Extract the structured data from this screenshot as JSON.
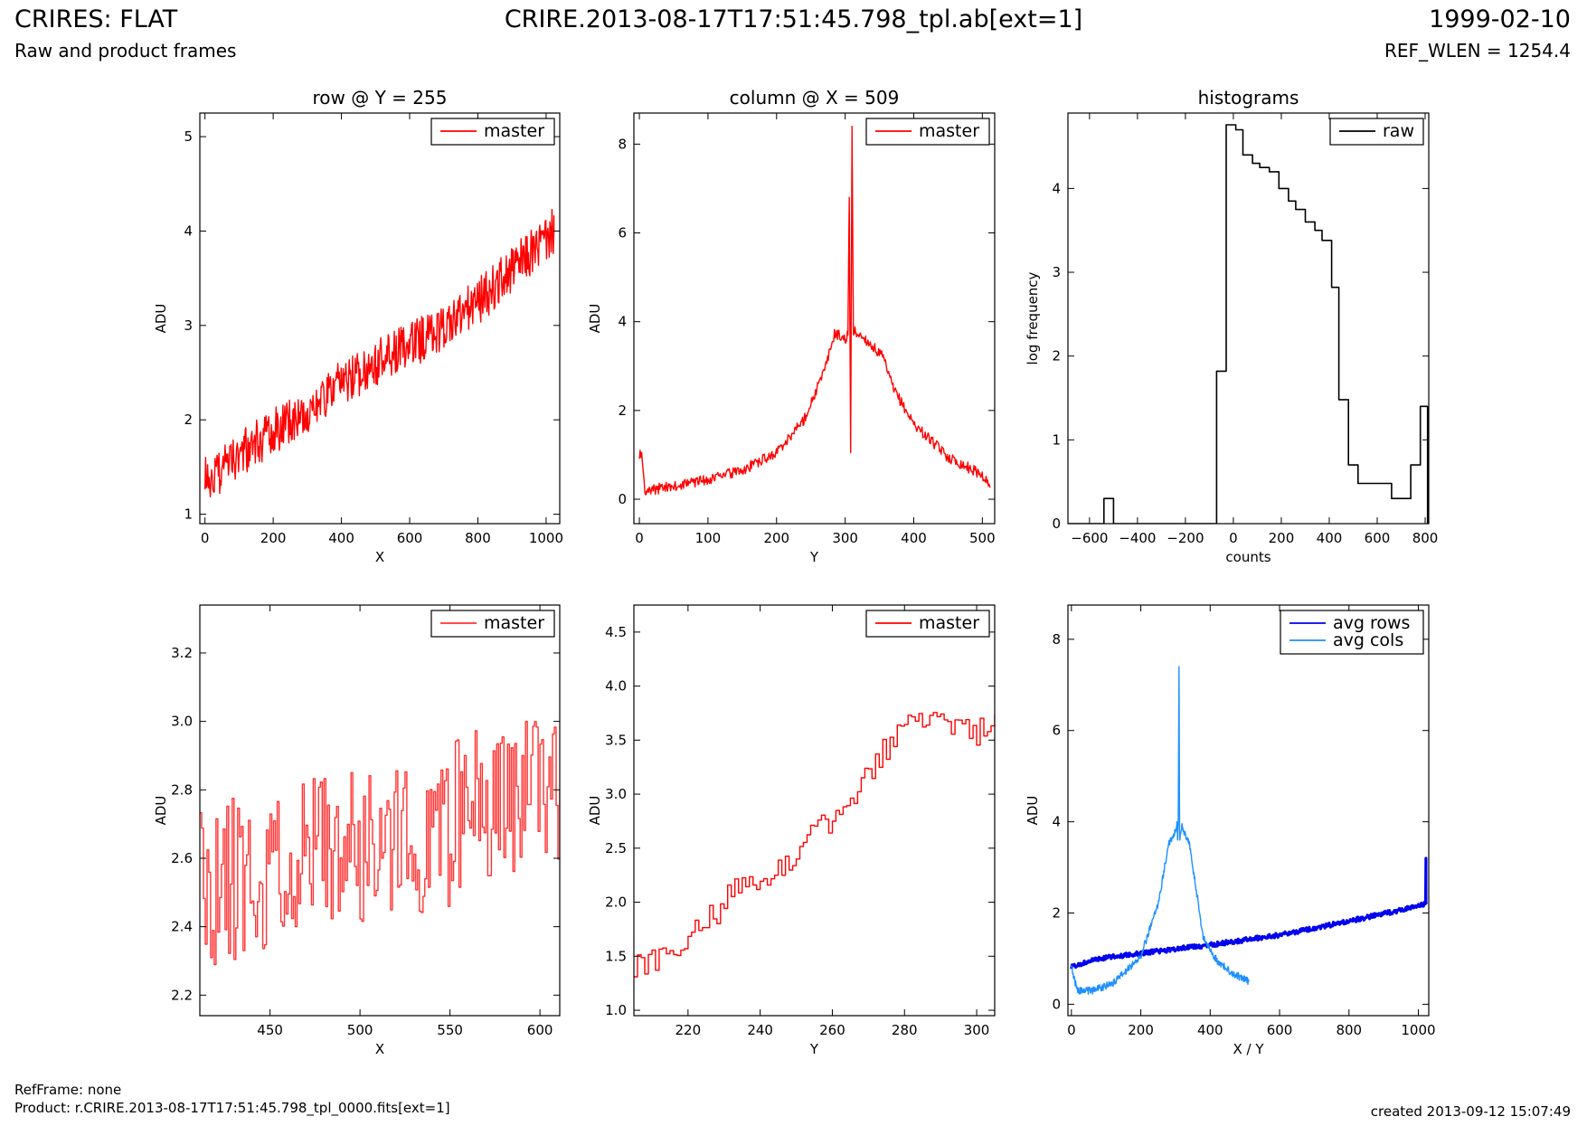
{
  "header": {
    "title": "CRIRES: FLAT",
    "subtitle": "Raw and product frames",
    "file": "CRIRE.2013-08-17T17:51:45.798_tpl.ab[ext=1]",
    "date": "1999-02-10",
    "ref_wlen": "REF_WLEN = 1254.4"
  },
  "footer": {
    "refframe": "RefFrame: none",
    "product": "Product: r.CRIRE.2013-08-17T17:51:45.798_tpl_0000.fits[ext=1]",
    "created": "created 2013-09-12 15:07:49"
  },
  "chart_data": [
    {
      "type": "line",
      "title": "row @ Y = 255",
      "xlabel": "X",
      "ylabel": "ADU",
      "xlim": [
        -15,
        1040
      ],
      "ylim": [
        0.9,
        5.25
      ],
      "xticks": [
        0,
        200,
        400,
        600,
        800,
        1000
      ],
      "yticks": [
        1,
        2,
        3,
        4,
        5
      ],
      "legend_position": "top-right",
      "series": [
        {
          "name": "master",
          "color": "#ff0000",
          "style": "noisy",
          "seed": 3,
          "x": [
            0,
            100,
            200,
            300,
            400,
            500,
            600,
            700,
            800,
            900,
            1000,
            1023
          ],
          "values": [
            1.35,
            1.62,
            1.88,
            2.08,
            2.38,
            2.6,
            2.78,
            2.98,
            3.25,
            3.58,
            3.92,
            4.0
          ],
          "noise": 0.25,
          "count": 520
        }
      ]
    },
    {
      "type": "line",
      "title": "column @ X = 509",
      "xlabel": "Y",
      "ylabel": "ADU",
      "xlim": [
        -8,
        518
      ],
      "ylim": [
        -0.55,
        8.7
      ],
      "xticks": [
        0,
        100,
        200,
        300,
        400,
        500
      ],
      "yticks": [
        0,
        2,
        4,
        6,
        8
      ],
      "legend_position": "top-right",
      "series": [
        {
          "name": "master",
          "color": "#ff0000",
          "style": "noisy",
          "seed": 7,
          "x": [
            0,
            3,
            8,
            10,
            30,
            60,
            100,
            150,
            200,
            240,
            270,
            285,
            300,
            304,
            306,
            308,
            310,
            312,
            316,
            330,
            355,
            370,
            400,
            450,
            500,
            511
          ],
          "values": [
            1.0,
            1.0,
            0.15,
            0.18,
            0.25,
            0.32,
            0.45,
            0.65,
            1.05,
            1.8,
            2.9,
            3.75,
            3.6,
            3.7,
            6.8,
            1.05,
            8.4,
            3.8,
            3.75,
            3.6,
            3.2,
            2.5,
            1.7,
            0.95,
            0.55,
            0.28
          ],
          "noise": 0.12,
          "count": 460
        }
      ]
    },
    {
      "type": "line",
      "title": "histograms",
      "xlabel": "counts",
      "ylabel": "log frequency",
      "xlim": [
        -690,
        815
      ],
      "ylim": [
        0,
        4.9
      ],
      "xticks": [
        -600,
        -400,
        -200,
        0,
        200,
        400,
        600,
        800
      ],
      "yticks": [
        0,
        1,
        2,
        3,
        4
      ],
      "legend_position": "top-right",
      "series": [
        {
          "name": "raw",
          "color": "#000000",
          "style": "step",
          "x": [
            -690,
            -540,
            -540,
            -500,
            -500,
            -70,
            -70,
            -30,
            -30,
            10,
            10,
            40,
            40,
            80,
            80,
            110,
            110,
            150,
            150,
            190,
            190,
            230,
            230,
            260,
            260,
            300,
            300,
            340,
            340,
            370,
            370,
            410,
            410,
            440,
            440,
            480,
            480,
            520,
            520,
            660,
            660,
            740,
            740,
            780,
            780,
            810,
            810
          ],
          "values": [
            0,
            0,
            0.3,
            0.3,
            0,
            0,
            1.82,
            1.82,
            4.76,
            4.76,
            4.7,
            4.7,
            4.4,
            4.4,
            4.3,
            4.3,
            4.25,
            4.25,
            4.2,
            4.2,
            4.0,
            4.0,
            3.85,
            3.85,
            3.75,
            3.75,
            3.6,
            3.6,
            3.5,
            3.5,
            3.38,
            3.38,
            2.82,
            2.82,
            1.48,
            1.48,
            0.7,
            0.7,
            0.48,
            0.48,
            0.3,
            0.3,
            0.7,
            0.7,
            1.4,
            1.4,
            0
          ]
        }
      ]
    },
    {
      "type": "line",
      "title": "",
      "xlabel": "X",
      "ylabel": "ADU",
      "xlim": [
        411,
        611
      ],
      "ylim": [
        2.14,
        3.34
      ],
      "xticks": [
        450,
        500,
        550,
        600
      ],
      "yticks": [
        2.2,
        2.4,
        2.6,
        2.8,
        3.0,
        3.2
      ],
      "legend_position": "top-right",
      "series": [
        {
          "name": "master",
          "color": "#ff3333",
          "style": "noisystep",
          "seed": 11,
          "x": [
            411,
            450,
            500,
            550,
            600,
            611
          ],
          "values": [
            2.52,
            2.56,
            2.64,
            2.7,
            2.84,
            2.76
          ],
          "noise": 0.24,
          "count": 200
        }
      ]
    },
    {
      "type": "line",
      "title": "",
      "xlabel": "Y",
      "ylabel": "ADU",
      "xlim": [
        205,
        305
      ],
      "ylim": [
        0.95,
        4.75
      ],
      "xticks": [
        220,
        240,
        260,
        280,
        300
      ],
      "yticks": [
        1.0,
        1.5,
        2.0,
        2.5,
        3.0,
        3.5,
        4.0,
        4.5
      ],
      "legend_position": "top-right",
      "series": [
        {
          "name": "master",
          "color": "#ff0000",
          "style": "noisystep",
          "seed": 5,
          "x": [
            205,
            215,
            225,
            235,
            245,
            255,
            265,
            275,
            282,
            290,
            300,
            305
          ],
          "values": [
            1.38,
            1.52,
            1.82,
            2.18,
            2.28,
            2.62,
            2.98,
            3.45,
            3.8,
            3.62,
            3.55,
            3.7
          ],
          "noise": 0.13,
          "count": 100
        }
      ]
    },
    {
      "type": "line",
      "title": "",
      "xlabel": "X / Y",
      "ylabel": "ADU",
      "xlim": [
        -10,
        1030
      ],
      "ylim": [
        -0.25,
        8.75
      ],
      "xticks": [
        0,
        200,
        400,
        600,
        800,
        1000
      ],
      "yticks": [
        0,
        2,
        4,
        6,
        8
      ],
      "legend_position": "top-right",
      "series": [
        {
          "name": "avg rows",
          "color": "#0000ee",
          "style": "band",
          "seed": 9,
          "x": [
            0,
            60,
            200,
            400,
            600,
            800,
            1000,
            1022,
            1022,
            1023
          ],
          "values": [
            0.82,
            0.98,
            1.12,
            1.3,
            1.52,
            1.82,
            2.15,
            2.2,
            3.2,
            2.2
          ],
          "noise": 0.05,
          "count": 500
        },
        {
          "name": "avg cols",
          "color": "#1e90ff",
          "style": "noisy",
          "seed": 13,
          "x": [
            0,
            10,
            20,
            60,
            120,
            200,
            250,
            280,
            300,
            304,
            306,
            308,
            310,
            312,
            318,
            340,
            360,
            380,
            420,
            460,
            511
          ],
          "values": [
            0.8,
            0.5,
            0.3,
            0.3,
            0.45,
            1.05,
            2.2,
            3.5,
            3.8,
            4.0,
            3.6,
            4.1,
            7.4,
            3.6,
            3.9,
            3.5,
            2.5,
            1.45,
            0.95,
            0.7,
            0.5
          ],
          "noise": 0.08,
          "count": 420
        }
      ]
    }
  ]
}
